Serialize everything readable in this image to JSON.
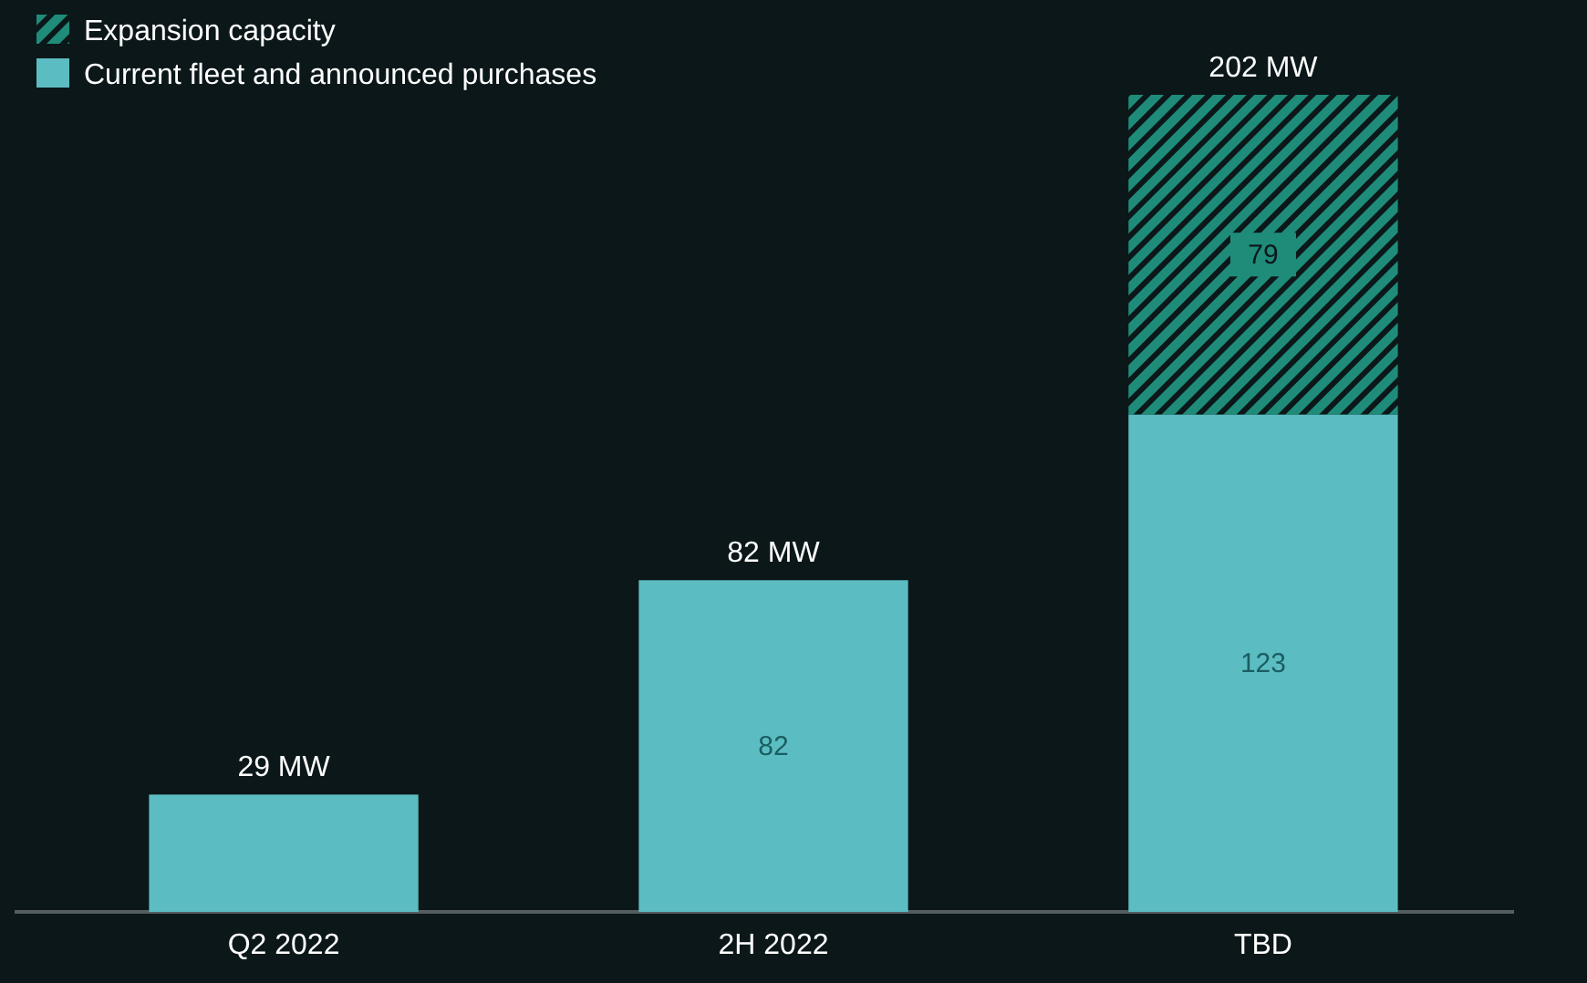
{
  "chart_data": {
    "type": "bar",
    "stacked": true,
    "categories": [
      "Q2 2022",
      "2H 2022",
      "TBD"
    ],
    "series": [
      {
        "name": "Current fleet and announced purchases",
        "color": "#5bbdc1",
        "values": [
          29,
          82,
          123
        ],
        "value_labels": [
          null,
          "82",
          "123"
        ]
      },
      {
        "name": "Expansion capacity",
        "color": "#1f8c7a",
        "values": [
          0,
          0,
          79
        ],
        "value_labels": [
          null,
          null,
          "79"
        ]
      }
    ],
    "totals": [
      "29 MW",
      "82 MW",
      "202 MW"
    ],
    "legend": "top left"
  }
}
